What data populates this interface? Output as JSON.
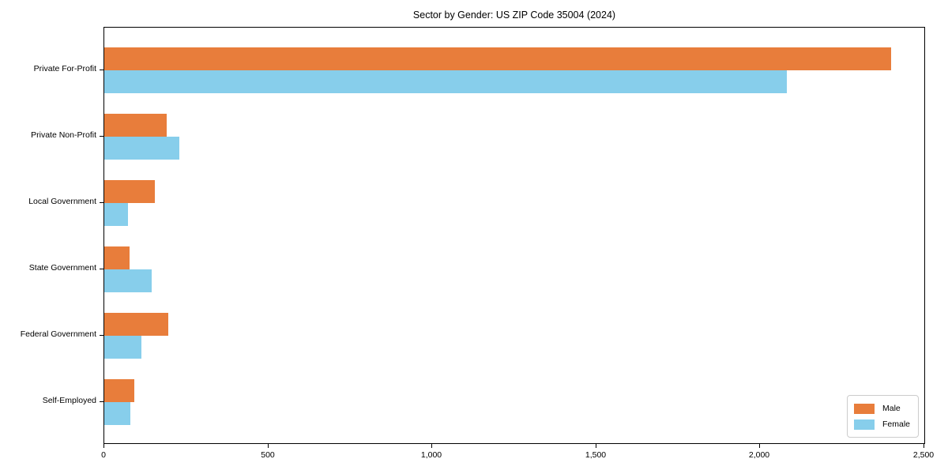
{
  "page": {
    "background": "#ffffff"
  },
  "chart_data": {
    "type": "bar",
    "orientation": "horizontal",
    "title": "Sector by Gender: US ZIP Code 35004 (2024)",
    "categories": [
      "Private For-Profit",
      "Private Non-Profit",
      "Local Government",
      "State Government",
      "Federal Government",
      "Self-Employed"
    ],
    "series": [
      {
        "name": "Male",
        "color": "#e87d3b",
        "values": [
          2400,
          190,
          155,
          78,
          195,
          92
        ]
      },
      {
        "name": "Female",
        "color": "#87ceeb",
        "values": [
          2080,
          230,
          72,
          145,
          113,
          80
        ]
      }
    ],
    "xlabel": "",
    "ylabel": "",
    "xlim": [
      0,
      2500
    ],
    "x_ticks": [
      0,
      500,
      1000,
      1500,
      2000,
      2500
    ],
    "x_tick_labels": [
      "0",
      "500",
      "1,000",
      "1,500",
      "2,000",
      "2,500"
    ],
    "grid": false,
    "legend": {
      "position": "lower right",
      "entries": [
        "Male",
        "Female"
      ]
    }
  }
}
